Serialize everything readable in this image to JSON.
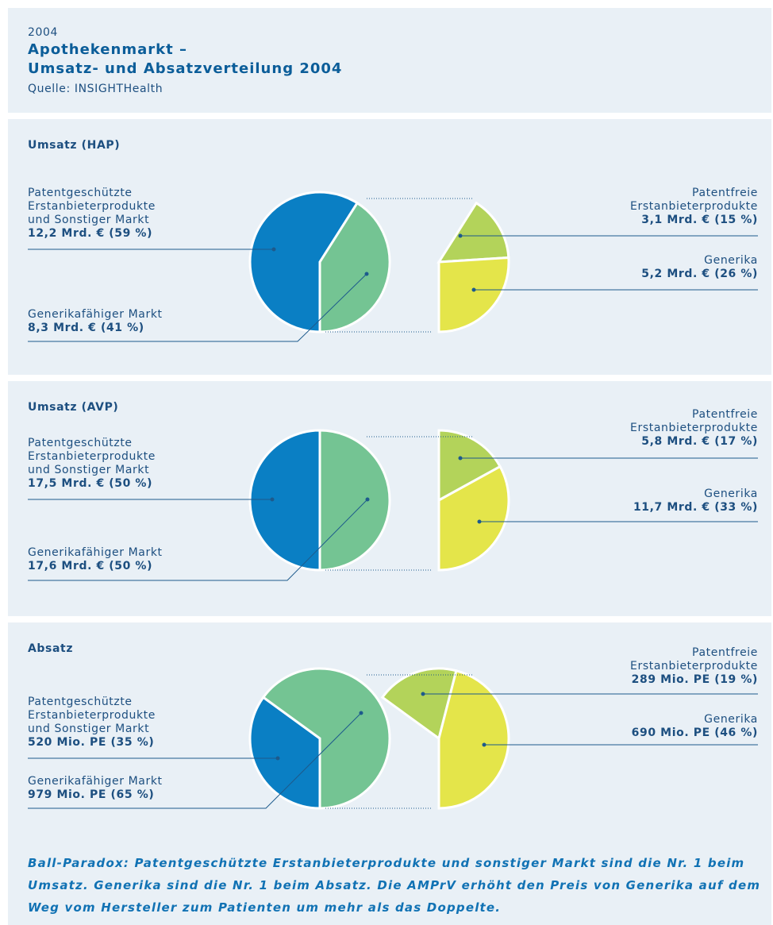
{
  "header": {
    "year": "2004",
    "title_lines": [
      "Apothekenmarkt –",
      "Umsatz- und Absatzverteilung 2004"
    ],
    "source": "Quelle: INSIGHTHealth"
  },
  "chart_data": [
    {
      "type": "pie-of-pie",
      "title": "Umsatz (HAP)",
      "categories": [
        [
          "Patentgeschützte",
          "Erstanbieterprodukte",
          "und Sonstiger Markt"
        ],
        [
          "Generikafähiger Markt"
        ]
      ],
      "values": [
        59,
        41
      ],
      "value_labels": [
        "12,2 Mrd. € (59 %)",
        "8,3 Mrd. € (41 %)"
      ],
      "colors": [
        "#0a7fc4",
        "#74c493"
      ],
      "detail": {
        "categories": [
          [
            "Patentfreie",
            "Erstanbieterprodukte"
          ],
          [
            "Generika"
          ]
        ],
        "values": [
          15,
          26
        ],
        "value_labels": [
          "3,1 Mrd. € (15 %)",
          "5,2 Mrd. € (26 %)"
        ],
        "colors": [
          "#b3d35a",
          "#e4e54a"
        ]
      }
    },
    {
      "type": "pie-of-pie",
      "title": "Umsatz (AVP)",
      "categories": [
        [
          "Patentgeschützte",
          "Erstanbieterprodukte",
          "und Sonstiger Markt"
        ],
        [
          "Generikafähiger Markt"
        ]
      ],
      "values": [
        50,
        50
      ],
      "value_labels": [
        "17,5 Mrd. € (50 %)",
        "17,6 Mrd. € (50 %)"
      ],
      "colors": [
        "#0a7fc4",
        "#74c493"
      ],
      "detail": {
        "categories": [
          [
            "Patentfreie",
            "Erstanbieterprodukte"
          ],
          [
            "Generika"
          ]
        ],
        "values": [
          17,
          33
        ],
        "value_labels": [
          "5,8 Mrd. € (17 %)",
          "11,7 Mrd. € (33 %)"
        ],
        "colors": [
          "#b3d35a",
          "#e4e54a"
        ]
      }
    },
    {
      "type": "pie-of-pie",
      "title": "Absatz",
      "categories": [
        [
          "Patentgeschützte",
          "Erstanbieterprodukte",
          "und Sonstiger Markt"
        ],
        [
          "Generikafähiger Markt"
        ]
      ],
      "values": [
        35,
        65
      ],
      "value_labels": [
        "520 Mio. PE (35 %)",
        "979 Mio. PE (65 %)"
      ],
      "colors": [
        "#0a7fc4",
        "#74c493"
      ],
      "detail": {
        "categories": [
          [
            "Patentfreie",
            "Erstanbieterprodukte"
          ],
          [
            "Generika"
          ]
        ],
        "values": [
          19,
          46
        ],
        "value_labels": [
          "289 Mio. PE (19 %)",
          "690 Mio. PE (46 %)"
        ],
        "colors": [
          "#b3d35a",
          "#e4e54a"
        ]
      }
    }
  ],
  "footnote": [
    "Ball-Paradox: Patentgeschützte Erstanbieterprodukte und sonstiger Markt sind die Nr. 1 beim",
    "Umsatz. Generika sind die Nr. 1 beim Absatz. Die AMPrV erhöht den Preis von Generika auf dem",
    "Weg vom Hersteller zum Patienten um mehr als das Doppelte."
  ]
}
